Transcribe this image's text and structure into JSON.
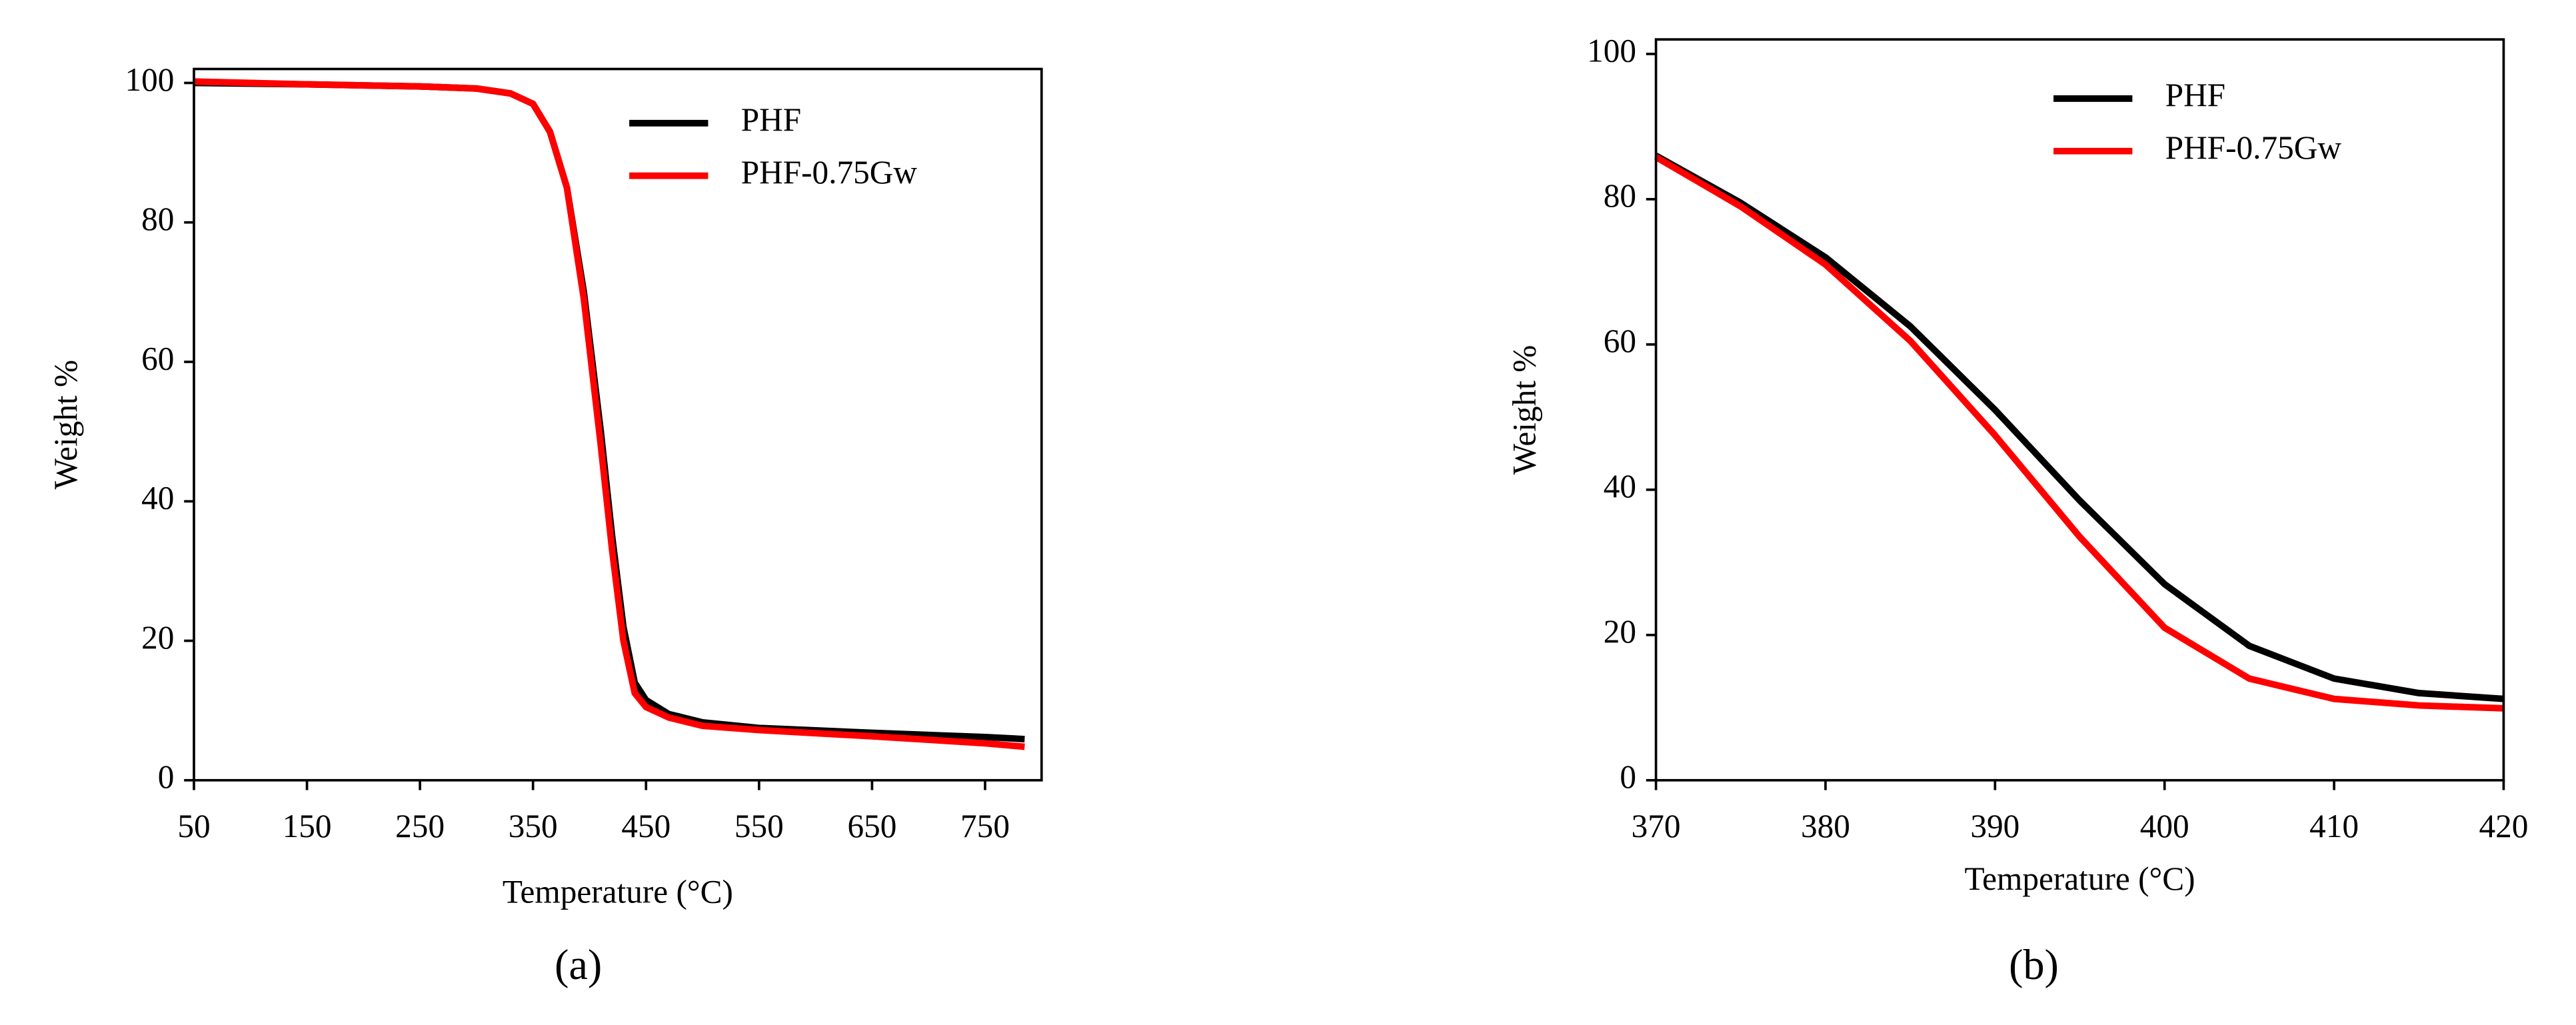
{
  "chart_data": [
    {
      "type": "line",
      "caption": "(a)",
      "xlabel": "Temperature (°C)",
      "ylabel": "Weight %",
      "xlim": [
        50,
        800
      ],
      "ylim": [
        0,
        102
      ],
      "xticks": [
        50,
        150,
        250,
        350,
        450,
        550,
        650,
        750
      ],
      "yticks": [
        0,
        20,
        40,
        60,
        80,
        100
      ],
      "x": [
        50,
        150,
        250,
        300,
        330,
        350,
        365,
        380,
        395,
        410,
        420,
        430,
        440,
        450,
        470,
        500,
        550,
        650,
        750,
        785
      ],
      "series": [
        {
          "name": "PHF",
          "color": "#000000",
          "values": [
            100,
            99.8,
            99.5,
            99.2,
            98.5,
            97,
            93,
            85,
            70,
            50,
            35,
            22,
            14,
            11.5,
            9.5,
            8.3,
            7.5,
            6.8,
            6.2,
            5.9
          ]
        },
        {
          "name": "PHF-0.75Gw",
          "color": "#ff0000",
          "values": [
            100.2,
            99.8,
            99.5,
            99.2,
            98.5,
            97,
            93,
            85,
            69,
            48,
            33,
            20,
            12.5,
            10.5,
            9,
            7.8,
            7.2,
            6.3,
            5.3,
            4.8
          ]
        }
      ]
    },
    {
      "type": "line",
      "caption": "(b)",
      "xlabel": "Temperature (°C)",
      "ylabel": "Weight %",
      "xlim": [
        370,
        420
      ],
      "ylim": [
        0,
        102
      ],
      "xticks": [
        370,
        380,
        390,
        400,
        410,
        420
      ],
      "yticks": [
        0,
        20,
        40,
        60,
        80,
        100
      ],
      "x": [
        370,
        375,
        380,
        385,
        390,
        395,
        400,
        405,
        410,
        415,
        420
      ],
      "series": [
        {
          "name": "PHF",
          "color": "#000000",
          "values": [
            86,
            79.5,
            72,
            62.5,
            51,
            38.5,
            27,
            18.5,
            14,
            12,
            11.2
          ]
        },
        {
          "name": "PHF-0.75Gw",
          "color": "#ff0000",
          "values": [
            85.8,
            79,
            71,
            60.5,
            47.5,
            33.5,
            21,
            14,
            11.2,
            10.3,
            9.9
          ]
        }
      ]
    }
  ]
}
